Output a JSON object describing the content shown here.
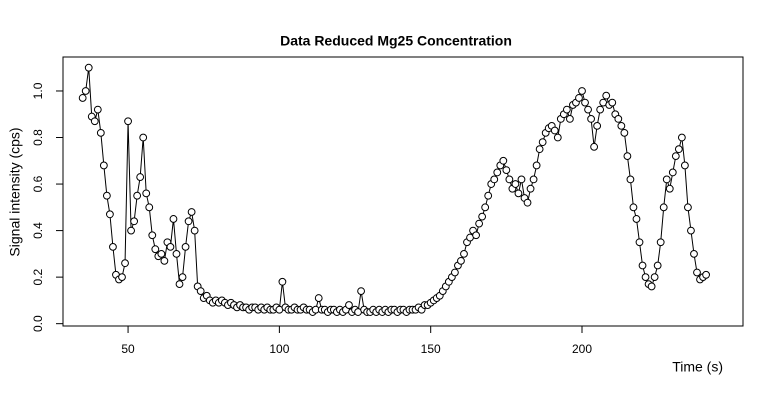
{
  "chart_data": {
    "type": "line",
    "markers": "open-circle",
    "title": "Data Reduced Mg25 Concentration",
    "x_label": "Time (s)",
    "y_label": "Signal intensity (cps)",
    "xlim": [
      28.5,
      253.2
    ],
    "ylim": [
      -0.01,
      1.146
    ],
    "xticks": [
      50,
      100,
      150,
      200
    ],
    "yticks": [
      {
        "value": 0,
        "label": "0.0"
      },
      0.2,
      0.4,
      0.6,
      0.8,
      {
        "value": 1,
        "label": "1.0"
      }
    ],
    "x": [
      35,
      36,
      37,
      38,
      39,
      40,
      41,
      42,
      43,
      44,
      45,
      46,
      47,
      48,
      49,
      50,
      51,
      52,
      53,
      54,
      55,
      56,
      57,
      58,
      59,
      60,
      61,
      62,
      63,
      64,
      65,
      66,
      67,
      68,
      69,
      70,
      71,
      72,
      73,
      74,
      75,
      76,
      77,
      78,
      79,
      80,
      81,
      82,
      83,
      84,
      85,
      86,
      87,
      88,
      89,
      90,
      91,
      92,
      93,
      94,
      95,
      96,
      97,
      98,
      99,
      100,
      101,
      102,
      103,
      104,
      105,
      106,
      107,
      108,
      109,
      110,
      111,
      112,
      113,
      114,
      115,
      116,
      117,
      118,
      119,
      120,
      121,
      122,
      123,
      124,
      125,
      126,
      127,
      128,
      129,
      130,
      131,
      132,
      133,
      134,
      135,
      136,
      137,
      138,
      139,
      140,
      141,
      142,
      143,
      144,
      145,
      146,
      147,
      148,
      149,
      150,
      151,
      152,
      153,
      154,
      155,
      156,
      157,
      158,
      159,
      160,
      161,
      162,
      163,
      164,
      165,
      166,
      167,
      168,
      169,
      170,
      171,
      172,
      173,
      174,
      175,
      176,
      177,
      178,
      179,
      180,
      181,
      182,
      183,
      184,
      185,
      186,
      187,
      188,
      189,
      190,
      191,
      192,
      193,
      194,
      195,
      196,
      197,
      198,
      199,
      200,
      201,
      202,
      203,
      204,
      205,
      206,
      207,
      208,
      209,
      210,
      211,
      212,
      213,
      214,
      215,
      216,
      217,
      218,
      219,
      220,
      221,
      222,
      223,
      224,
      225,
      226,
      227,
      228,
      229,
      230,
      231,
      232,
      233,
      234,
      235,
      236,
      237,
      238,
      239,
      240,
      241
    ],
    "series": [
      {
        "color": "#000000",
        "values": [
          0.97,
          1.0,
          1.1,
          0.89,
          0.87,
          0.92,
          0.82,
          0.68,
          0.55,
          0.47,
          0.33,
          0.21,
          0.19,
          0.2,
          0.26,
          0.87,
          0.4,
          0.44,
          0.55,
          0.63,
          0.8,
          0.56,
          0.5,
          0.38,
          0.32,
          0.29,
          0.3,
          0.27,
          0.35,
          0.33,
          0.45,
          0.3,
          0.17,
          0.2,
          0.33,
          0.44,
          0.48,
          0.4,
          0.16,
          0.14,
          0.11,
          0.12,
          0.1,
          0.09,
          0.1,
          0.09,
          0.1,
          0.09,
          0.08,
          0.09,
          0.08,
          0.07,
          0.08,
          0.07,
          0.07,
          0.06,
          0.07,
          0.07,
          0.06,
          0.07,
          0.06,
          0.07,
          0.06,
          0.06,
          0.07,
          0.06,
          0.18,
          0.07,
          0.06,
          0.06,
          0.07,
          0.06,
          0.06,
          0.07,
          0.06,
          0.06,
          0.05,
          0.06,
          0.11,
          0.06,
          0.06,
          0.05,
          0.06,
          0.06,
          0.05,
          0.06,
          0.05,
          0.06,
          0.08,
          0.05,
          0.06,
          0.05,
          0.14,
          0.06,
          0.05,
          0.05,
          0.06,
          0.05,
          0.06,
          0.05,
          0.06,
          0.05,
          0.06,
          0.06,
          0.05,
          0.06,
          0.06,
          0.05,
          0.06,
          0.06,
          0.06,
          0.07,
          0.06,
          0.08,
          0.08,
          0.09,
          0.1,
          0.11,
          0.12,
          0.14,
          0.16,
          0.18,
          0.2,
          0.22,
          0.25,
          0.27,
          0.3,
          0.35,
          0.37,
          0.4,
          0.38,
          0.43,
          0.46,
          0.5,
          0.55,
          0.6,
          0.62,
          0.65,
          0.68,
          0.7,
          0.66,
          0.62,
          0.58,
          0.6,
          0.56,
          0.62,
          0.54,
          0.52,
          0.58,
          0.62,
          0.68,
          0.75,
          0.78,
          0.82,
          0.84,
          0.85,
          0.83,
          0.8,
          0.88,
          0.9,
          0.92,
          0.88,
          0.94,
          0.95,
          0.97,
          1.0,
          0.95,
          0.92,
          0.88,
          0.76,
          0.85,
          0.92,
          0.95,
          0.98,
          0.94,
          0.95,
          0.9,
          0.88,
          0.85,
          0.82,
          0.72,
          0.62,
          0.5,
          0.45,
          0.35,
          0.25,
          0.2,
          0.17,
          0.16,
          0.2,
          0.25,
          0.35,
          0.5,
          0.62,
          0.58,
          0.65,
          0.72,
          0.75,
          0.8,
          0.68,
          0.5,
          0.4,
          0.3,
          0.22,
          0.19,
          0.2,
          0.21
        ]
      }
    ]
  }
}
